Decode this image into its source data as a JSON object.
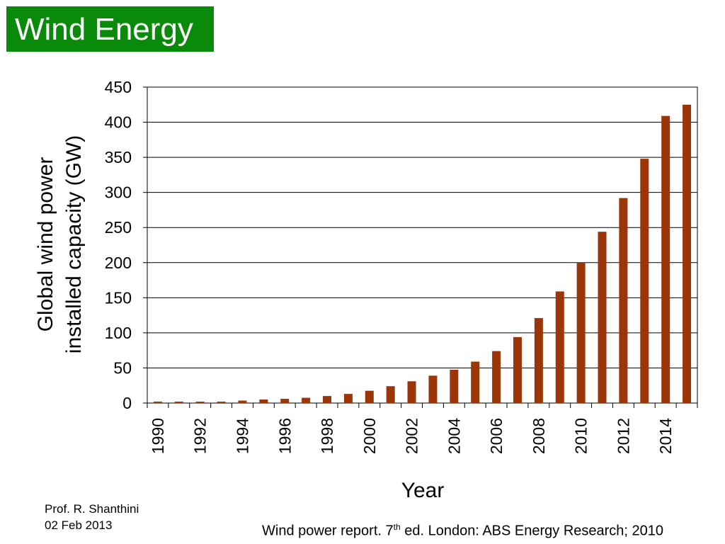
{
  "slide": {
    "title": "Wind Energy",
    "author": "Prof. R. Shanthini",
    "date": "02 Feb 2013",
    "citation_prefix": "Wind power report. 7",
    "citation_sup": "th",
    "citation_suffix": " ed. London: ABS Energy Research; 2010",
    "title_bg_color": "#0a8a0a"
  },
  "chart_data": {
    "type": "bar",
    "xlabel": "Year",
    "ylabel_lines": [
      "Global wind power",
      "installed capacity (GW)"
    ],
    "ylim": [
      0,
      450
    ],
    "yticks": [
      0,
      50,
      100,
      150,
      200,
      250,
      300,
      350,
      400,
      450
    ],
    "grid": true,
    "bar_color": "#9b3608",
    "categories": [
      1990,
      1991,
      1992,
      1993,
      1994,
      1995,
      1996,
      1997,
      1998,
      1999,
      2000,
      2001,
      2002,
      2003,
      2004,
      2005,
      2006,
      2007,
      2008,
      2009,
      2010,
      2011,
      2012,
      2013,
      2014,
      2015
    ],
    "tick_labels": [
      "1990",
      "",
      "1992",
      "",
      "1994",
      "",
      "1996",
      "",
      "1998",
      "",
      "2000",
      "",
      "2002",
      "",
      "2004",
      "",
      "2006",
      "",
      "2008",
      "",
      "2010",
      "",
      "2012",
      "",
      "2014",
      ""
    ],
    "values": [
      2,
      2,
      2,
      2,
      3.5,
      5,
      6,
      7.5,
      10,
      13,
      17.5,
      24,
      31,
      39,
      47.5,
      59,
      74,
      94,
      121,
      159,
      200,
      244,
      292,
      348,
      409,
      425
    ]
  }
}
